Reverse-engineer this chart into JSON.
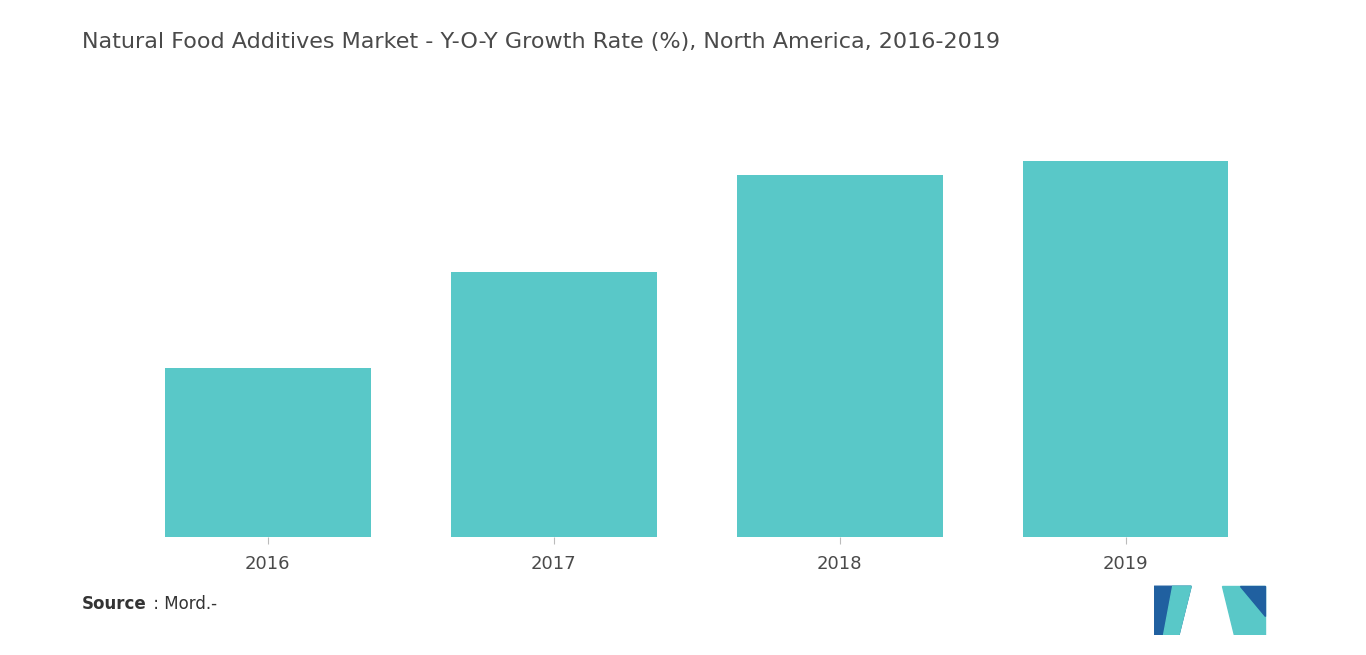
{
  "title": "Natural Food Additives Market - Y-O-Y Growth Rate (%), North America, 2016-2019",
  "categories": [
    "2016",
    "2017",
    "2018",
    "2019"
  ],
  "values": [
    3.5,
    5.5,
    7.5,
    7.8
  ],
  "bar_color": "#59C8C8",
  "background_color": "#ffffff",
  "title_fontsize": 16,
  "tick_fontsize": 13,
  "title_color": "#4a4a4a",
  "tick_color": "#4a4a4a",
  "source_bold": "Source",
  "source_rest": " : Mord.-",
  "ylim": [
    0,
    9.5
  ],
  "bar_width": 0.72,
  "logo_dark": "#2060A0",
  "logo_teal": "#59C8C8"
}
